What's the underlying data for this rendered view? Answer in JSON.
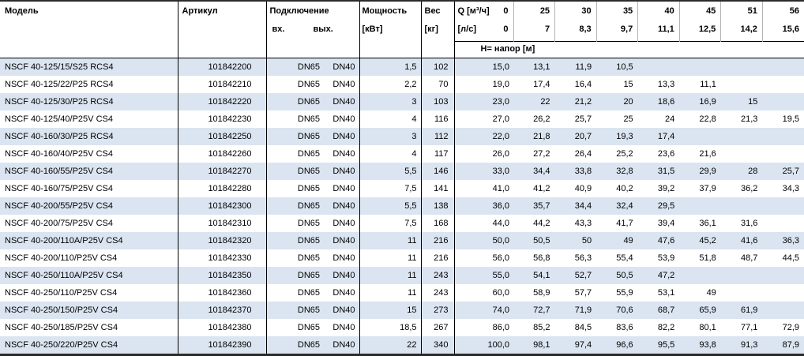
{
  "table": {
    "headers": {
      "model": "Модель",
      "article": "Артикул",
      "connection": "Подключение",
      "inlet": "вх.",
      "outlet": "вых.",
      "power_line1": "Мощность",
      "power_line2": "[кВт]",
      "weight_line1": "Вес",
      "weight_line2": "[кг]",
      "q_m3h_label": "Q [м³/ч]",
      "q_ls_label": "[л/с]",
      "q_zero": "0",
      "head_row_label": "Н= напор [м]",
      "flow_m3h": [
        "25",
        "30",
        "35",
        "40",
        "45",
        "51",
        "56"
      ],
      "flow_ls": [
        "7",
        "8,3",
        "9,7",
        "11,1",
        "12,5",
        "14,2",
        "15,6"
      ]
    },
    "colors": {
      "row_shade": "#dbe5f1",
      "border_dark": "#2b2b2b"
    },
    "rows": [
      {
        "model": "NSCF 40-125/15/S25 RCS4",
        "article": "101842200",
        "inlet": "DN65",
        "outlet": "DN40",
        "power": "1,5",
        "weight": "102",
        "heads": [
          "15,0",
          "13,1",
          "11,9",
          "10,5",
          "",
          "",
          "",
          ""
        ]
      },
      {
        "model": "NSCF 40-125/22/P25 RCS4",
        "article": "101842210",
        "inlet": "DN65",
        "outlet": "DN40",
        "power": "2,2",
        "weight": "70",
        "heads": [
          "19,0",
          "17,4",
          "16,4",
          "15",
          "13,3",
          "11,1",
          "",
          ""
        ]
      },
      {
        "model": "NSCF 40-125/30/P25 RCS4",
        "article": "101842220",
        "inlet": "DN65",
        "outlet": "DN40",
        "power": "3",
        "weight": "103",
        "heads": [
          "23,0",
          "22",
          "21,2",
          "20",
          "18,6",
          "16,9",
          "15",
          ""
        ]
      },
      {
        "model": "NSCF 40-125/40/P25V CS4",
        "article": "101842230",
        "inlet": "DN65",
        "outlet": "DN40",
        "power": "4",
        "weight": "116",
        "heads": [
          "27,0",
          "26,2",
          "25,7",
          "25",
          "24",
          "22,8",
          "21,3",
          "19,5"
        ]
      },
      {
        "model": "NSCF 40-160/30/P25 RCS4",
        "article": "101842250",
        "inlet": "DN65",
        "outlet": "DN40",
        "power": "3",
        "weight": "112",
        "heads": [
          "22,0",
          "21,8",
          "20,7",
          "19,3",
          "17,4",
          "",
          "",
          ""
        ]
      },
      {
        "model": "NSCF 40-160/40/P25V CS4",
        "article": "101842260",
        "inlet": "DN65",
        "outlet": "DN40",
        "power": "4",
        "weight": "117",
        "heads": [
          "26,0",
          "27,2",
          "26,4",
          "25,2",
          "23,6",
          "21,6",
          "",
          ""
        ]
      },
      {
        "model": "NSCF 40-160/55/P25V CS4",
        "article": "101842270",
        "inlet": "DN65",
        "outlet": "DN40",
        "power": "5,5",
        "weight": "146",
        "heads": [
          "33,0",
          "34,4",
          "33,8",
          "32,8",
          "31,5",
          "29,9",
          "28",
          "25,7"
        ]
      },
      {
        "model": "NSCF 40-160/75/P25V CS4",
        "article": "101842280",
        "inlet": "DN65",
        "outlet": "DN40",
        "power": "7,5",
        "weight": "141",
        "heads": [
          "41,0",
          "41,2",
          "40,9",
          "40,2",
          "39,2",
          "37,9",
          "36,2",
          "34,3"
        ]
      },
      {
        "model": "NSCF 40-200/55/P25V CS4",
        "article": "101842300",
        "inlet": "DN65",
        "outlet": "DN40",
        "power": "5,5",
        "weight": "138",
        "heads": [
          "36,0",
          "35,7",
          "34,4",
          "32,4",
          "29,5",
          "",
          "",
          ""
        ]
      },
      {
        "model": "NSCF 40-200/75/P25V CS4",
        "article": "101842310",
        "inlet": "DN65",
        "outlet": "DN40",
        "power": "7,5",
        "weight": "168",
        "heads": [
          "44,0",
          "44,2",
          "43,3",
          "41,7",
          "39,4",
          "36,1",
          "31,6",
          ""
        ]
      },
      {
        "model": "NSCF 40-200/110A/P25V CS4",
        "article": "101842320",
        "inlet": "DN65",
        "outlet": "DN40",
        "power": "11",
        "weight": "216",
        "heads": [
          "50,0",
          "50,5",
          "50",
          "49",
          "47,6",
          "45,2",
          "41,6",
          "36,3"
        ]
      },
      {
        "model": "NSCF 40-200/110/P25V CS4",
        "article": "101842330",
        "inlet": "DN65",
        "outlet": "DN40",
        "power": "11",
        "weight": "216",
        "heads": [
          "56,0",
          "56,8",
          "56,3",
          "55,4",
          "53,9",
          "51,8",
          "48,7",
          "44,5"
        ]
      },
      {
        "model": "NSCF 40-250/110A/P25V CS4",
        "article": "101842350",
        "inlet": "DN65",
        "outlet": "DN40",
        "power": "11",
        "weight": "243",
        "heads": [
          "55,0",
          "54,1",
          "52,7",
          "50,5",
          "47,2",
          "",
          "",
          ""
        ]
      },
      {
        "model": "NSCF 40-250/110/P25V CS4",
        "article": "101842360",
        "inlet": "DN65",
        "outlet": "DN40",
        "power": "11",
        "weight": "243",
        "heads": [
          "60,0",
          "58,9",
          "57,7",
          "55,9",
          "53,1",
          "49",
          "",
          ""
        ]
      },
      {
        "model": "NSCF 40-250/150/P25V CS4",
        "article": "101842370",
        "inlet": "DN65",
        "outlet": "DN40",
        "power": "15",
        "weight": "273",
        "heads": [
          "74,0",
          "72,7",
          "71,9",
          "70,6",
          "68,7",
          "65,9",
          "61,9",
          ""
        ]
      },
      {
        "model": "NSCF 40-250/185/P25V CS4",
        "article": "101842380",
        "inlet": "DN65",
        "outlet": "DN40",
        "power": "18,5",
        "weight": "267",
        "heads": [
          "86,0",
          "85,2",
          "84,5",
          "83,6",
          "82,2",
          "80,1",
          "77,1",
          "72,9"
        ]
      },
      {
        "model": "NSCF 40-250/220/P25V CS4",
        "article": "101842390",
        "inlet": "DN65",
        "outlet": "DN40",
        "power": "22",
        "weight": "340",
        "heads": [
          "100,0",
          "98,1",
          "97,4",
          "96,6",
          "95,5",
          "93,8",
          "91,3",
          "87,9"
        ]
      }
    ]
  }
}
